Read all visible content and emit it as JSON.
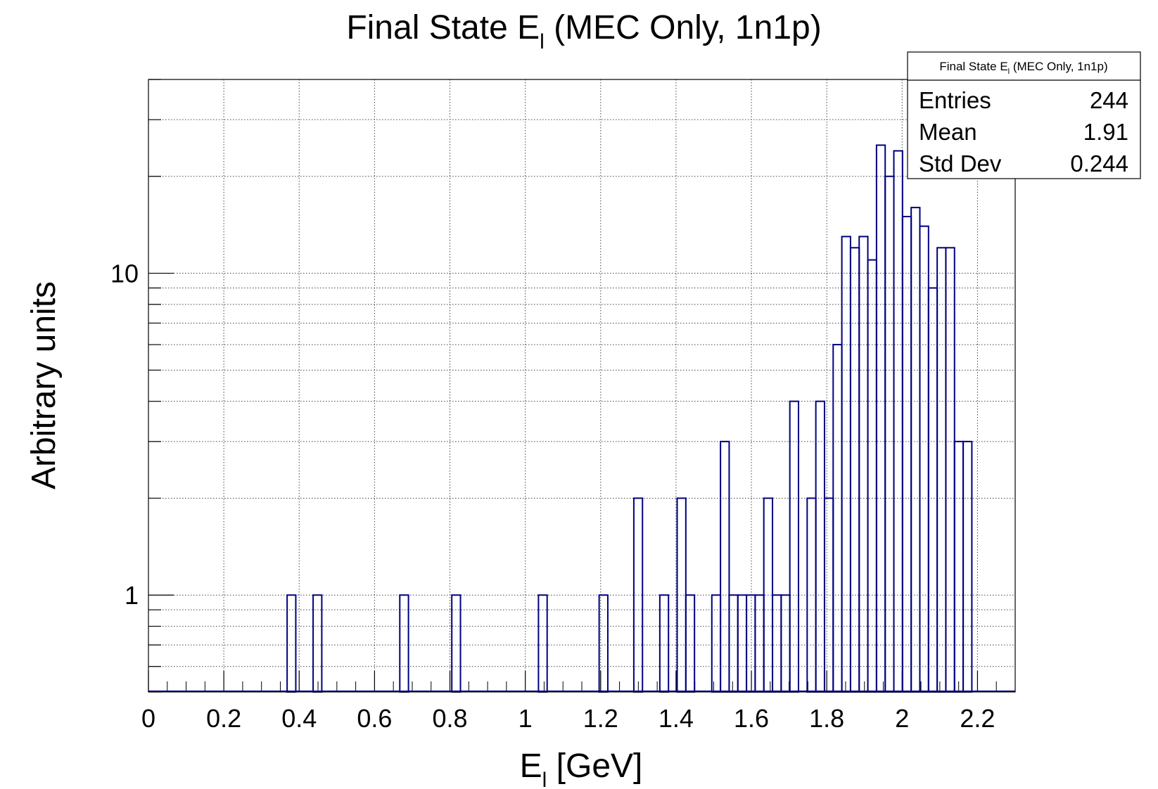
{
  "chart_data": {
    "type": "bar",
    "title_main": "Final State E",
    "title_sub": "l",
    "title_rest": " (MEC Only, 1n1p)",
    "xlabel_main": "E",
    "xlabel_sub": "l",
    "xlabel_rest": " [GeV]",
    "ylabel": "Arbitrary units",
    "xlim": [
      0,
      2.3
    ],
    "ylim": [
      0.5,
      40
    ],
    "yscale": "log",
    "grid": true,
    "line_color": "#000080",
    "bin_width": 0.023,
    "x_ticks": [
      "0",
      "0.2",
      "0.4",
      "0.6",
      "0.8",
      "1",
      "1.2",
      "1.4",
      "1.6",
      "1.8",
      "2",
      "2.2"
    ],
    "y_ticks": [
      "1",
      "10"
    ],
    "bins": [
      {
        "x": 0.368,
        "y": 1
      },
      {
        "x": 0.437,
        "y": 1
      },
      {
        "x": 0.667,
        "y": 1
      },
      {
        "x": 0.805,
        "y": 1
      },
      {
        "x": 1.035,
        "y": 1
      },
      {
        "x": 1.196,
        "y": 1
      },
      {
        "x": 1.288,
        "y": 2
      },
      {
        "x": 1.357,
        "y": 1
      },
      {
        "x": 1.403,
        "y": 2
      },
      {
        "x": 1.426,
        "y": 1
      },
      {
        "x": 1.495,
        "y": 1
      },
      {
        "x": 1.518,
        "y": 3
      },
      {
        "x": 1.541,
        "y": 1
      },
      {
        "x": 1.564,
        "y": 1
      },
      {
        "x": 1.587,
        "y": 1
      },
      {
        "x": 1.61,
        "y": 1
      },
      {
        "x": 1.633,
        "y": 2
      },
      {
        "x": 1.656,
        "y": 1
      },
      {
        "x": 1.679,
        "y": 1
      },
      {
        "x": 1.702,
        "y": 4
      },
      {
        "x": 1.748,
        "y": 2
      },
      {
        "x": 1.771,
        "y": 4
      },
      {
        "x": 1.794,
        "y": 2
      },
      {
        "x": 1.817,
        "y": 6
      },
      {
        "x": 1.84,
        "y": 13
      },
      {
        "x": 1.863,
        "y": 12
      },
      {
        "x": 1.886,
        "y": 13
      },
      {
        "x": 1.909,
        "y": 11
      },
      {
        "x": 1.932,
        "y": 25
      },
      {
        "x": 1.955,
        "y": 20
      },
      {
        "x": 1.978,
        "y": 24
      },
      {
        "x": 2.001,
        "y": 15
      },
      {
        "x": 2.024,
        "y": 16
      },
      {
        "x": 2.047,
        "y": 14
      },
      {
        "x": 2.07,
        "y": 9
      },
      {
        "x": 2.093,
        "y": 12
      },
      {
        "x": 2.116,
        "y": 12
      },
      {
        "x": 2.139,
        "y": 3
      },
      {
        "x": 2.162,
        "y": 3
      }
    ],
    "stats_box": {
      "title_main": "Final State E",
      "title_sub": "l",
      "title_rest": " (MEC Only, 1n1p)",
      "rows": [
        {
          "label": "Entries",
          "value": "244"
        },
        {
          "label": "Mean",
          "value": "1.91"
        },
        {
          "label": "Std Dev",
          "value": "0.244"
        }
      ]
    }
  }
}
